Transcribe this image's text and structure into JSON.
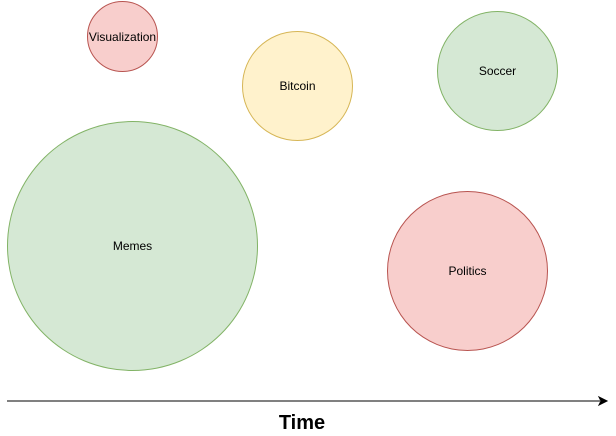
{
  "bubbles": [
    {
      "id": "visualization",
      "label": "Visualization",
      "fill": "#f8cecc",
      "stroke": "#b85450"
    },
    {
      "id": "bitcoin",
      "label": "Bitcoin",
      "fill": "#fff2cc",
      "stroke": "#d6b656"
    },
    {
      "id": "soccer",
      "label": "Soccer",
      "fill": "#d5e8d4",
      "stroke": "#82b366"
    },
    {
      "id": "memes",
      "label": "Memes",
      "fill": "#d5e8d4",
      "stroke": "#82b366"
    },
    {
      "id": "politics",
      "label": "Politics",
      "fill": "#f8cecc",
      "stroke": "#b85450"
    }
  ],
  "axis": {
    "label": "Time",
    "color": "#000000"
  }
}
